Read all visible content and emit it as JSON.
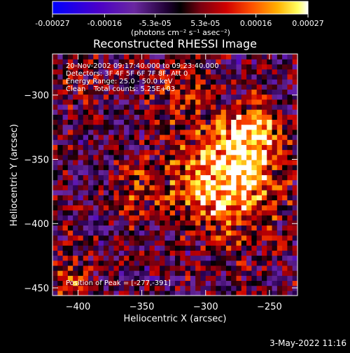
{
  "chart_data": {
    "type": "heatmap",
    "title": "Reconstructed RHESSI Image",
    "xlabel": "Heliocentric X (arcsec)",
    "ylabel": "Heliocentric Y (arcsec)",
    "xlim": [
      -420,
      -228
    ],
    "ylim": [
      -456,
      -268
    ],
    "xticks": [
      -400,
      -350,
      -300,
      -250
    ],
    "yticks": [
      -450,
      -400,
      -350,
      -300
    ],
    "colorbar": {
      "ticks": [
        "-0.00027",
        "-0.00016",
        "-5.3e-05",
        "5.3e-05",
        "0.00016",
        "0.00027"
      ],
      "tick_values": [
        -0.00027,
        -0.00016,
        -5.3e-05,
        5.3e-05,
        0.00016,
        0.00027
      ],
      "range": [
        -0.00027,
        0.00027
      ],
      "units_text": "(photons cm⁻² s⁻¹ asec⁻²)"
    },
    "annotations": {
      "time": "20-Nov-2002 09:17:40.000 to 09:23:40.000",
      "detectors": "Detectors: 3F 4F 5F 6F 7F 8F, Att 0",
      "energy": "Energy Range: 25.0 - 50.0 keV",
      "method": "Clean",
      "counts": "Total counts: 5.25E+03",
      "peak": "Position of Peak = [-277,-391]"
    },
    "peak": [
      -277,
      -391
    ],
    "hot_regions": [
      {
        "x": -283,
        "y": -365,
        "value": 0.00027
      },
      {
        "x": -265,
        "y": -330,
        "value": 0.00018
      },
      {
        "x": -320,
        "y": -295,
        "value": 0.0001
      },
      {
        "x": -355,
        "y": -373,
        "value": 9e-05
      },
      {
        "x": -410,
        "y": -445,
        "value": 0.00012
      },
      {
        "x": -408,
        "y": -285,
        "value": 6e-05
      }
    ],
    "colors": [
      "#0000ff",
      "#4b00c8",
      "#6a28a0",
      "#2a0050",
      "#000000",
      "#6e0014",
      "#c80000",
      "#ff4800",
      "#ffa000",
      "#ffff50",
      "#ffffff"
    ]
  },
  "footer": {
    "timestamp": "3-May-2022 11:16"
  }
}
